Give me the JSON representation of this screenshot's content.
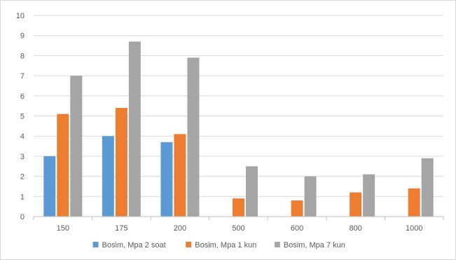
{
  "chart_data": {
    "type": "bar",
    "title": "",
    "xlabel": "",
    "ylabel": "",
    "categories": [
      "150",
      "175",
      "200",
      "500",
      "600",
      "800",
      "1000"
    ],
    "series": [
      {
        "name": "Bosim, Mpa 2 soat",
        "color": "#5b9bd5",
        "values": [
          3.0,
          4.0,
          3.7,
          0,
          0,
          0,
          0
        ]
      },
      {
        "name": "Bosim, Mpa 1 kun",
        "color": "#ed7d31",
        "values": [
          5.1,
          5.4,
          4.1,
          0.9,
          0.8,
          1.2,
          1.4
        ]
      },
      {
        "name": "Bosim, Mpa 7 kun",
        "color": "#a5a5a5",
        "values": [
          7.0,
          8.7,
          7.9,
          2.5,
          2.0,
          2.1,
          2.9
        ]
      }
    ],
    "ylim": [
      0,
      10
    ],
    "yticks": [
      "0",
      "1",
      "2",
      "3",
      "4",
      "5",
      "6",
      "7",
      "8",
      "9",
      "10"
    ],
    "grid": true,
    "legend_position": "bottom"
  }
}
